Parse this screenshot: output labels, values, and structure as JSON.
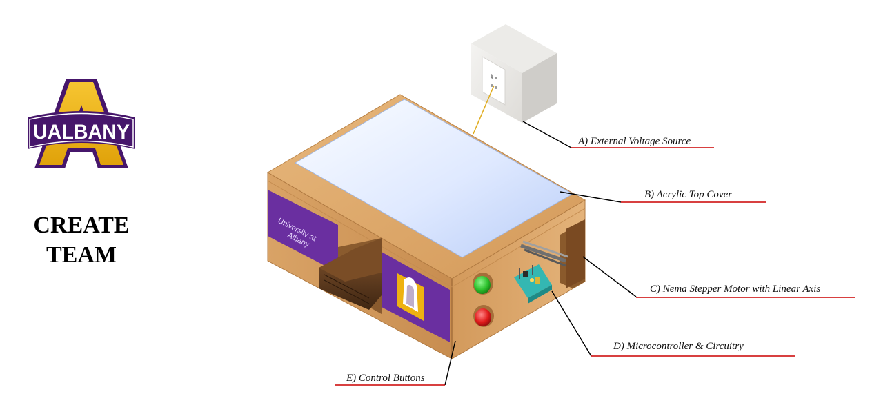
{
  "logo": {
    "wordmark": "UALBANY",
    "colors": {
      "purple": "#46166b",
      "gold": "#eeb211"
    }
  },
  "team": {
    "line1": "CREATE",
    "line2": "TEAM"
  },
  "side_panel": {
    "text_line1": "University at",
    "text_line2": "Albany"
  },
  "callouts": [
    {
      "id": "A",
      "label": "A) External Voltage Source"
    },
    {
      "id": "B",
      "label": "B) Acrylic Top Cover"
    },
    {
      "id": "C",
      "label": "C) Nema Stepper Motor with Linear Axis"
    },
    {
      "id": "D",
      "label": "D) Microcontroller & Circuitry"
    },
    {
      "id": "E",
      "label": "E) Control Buttons"
    }
  ],
  "colors": {
    "wood": "#d9a366",
    "wood_dark": "#b98246",
    "purple_panel": "#6a2fa0",
    "acrylic": "#dce8ff",
    "button_green": "#2ec22e",
    "button_red": "#e11b1b",
    "underline_red": "#cc0000"
  }
}
